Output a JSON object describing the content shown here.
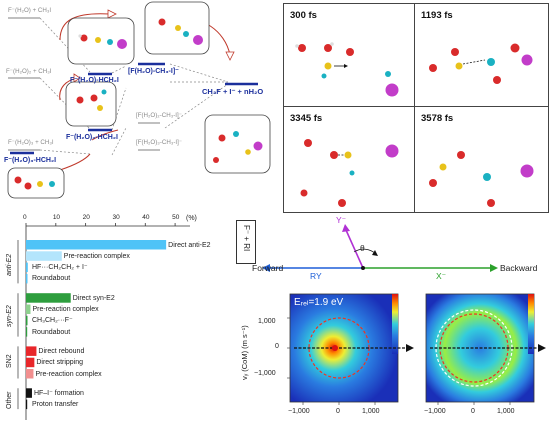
{
  "energy_diagram": {
    "reactants": [
      {
        "label": "F⁻(H₂O) + CH₃I"
      },
      {
        "label": "F⁻(H₂O)₂ + CH₃I"
      },
      {
        "label": "F⁻(H₂O)₃ + CH₃I"
      }
    ],
    "complexes": [
      {
        "label": "F⁻(H₂O)-HCH₂I"
      },
      {
        "label": "F⁻(H₂O)₂-HCH₂I"
      },
      {
        "label": "F⁻(H₂O)₃-HCH₂I"
      }
    ],
    "transition_states": [
      {
        "label": "[F(H₂O)-CH₃-I]⁻"
      },
      {
        "label": "[F(H₂O)₂-CH₃-I]⁻"
      },
      {
        "label": "[F(H₂O)₃-CH₃-I]⁻"
      }
    ],
    "products": "CH₃F + I⁻ + nH₂O"
  },
  "snapshots": [
    {
      "time": "300 fs"
    },
    {
      "time": "1193 fs"
    },
    {
      "time": "3345 fs"
    },
    {
      "time": "3578 fs"
    }
  ],
  "bar_chart": {
    "unit": "(%)",
    "ticks": [
      "0",
      "10",
      "20",
      "30",
      "40",
      "50"
    ],
    "groups": [
      {
        "name": "anti-E2",
        "bars": [
          {
            "label": "Direct anti-E2",
            "value": 47,
            "color": "#4fc3f7"
          },
          {
            "label": "Pre-reaction complex",
            "value": 12,
            "color": "#b3e5fc"
          },
          {
            "label": "HF···CH₂CH₂ + I⁻",
            "value": 0.6,
            "color": "#4fc3f7"
          },
          {
            "label": "Roundabout",
            "value": 0.5,
            "color": "#4fc3f7"
          }
        ]
      },
      {
        "name": "syn-E2",
        "bars": [
          {
            "label": "Direct syn-E2",
            "value": 15,
            "color": "#2e9e3e"
          },
          {
            "label": "Pre-reaction complex",
            "value": 1.5,
            "color": "#8fd18f"
          },
          {
            "label": "CH₃CH₂···F⁻",
            "value": 0.5,
            "color": "#2e9e3e"
          },
          {
            "label": "Roundabout",
            "value": 0.4,
            "color": "#2e9e3e"
          }
        ]
      },
      {
        "name": "SN2",
        "bars": [
          {
            "label": "Direct rebound",
            "value": 3.5,
            "color": "#e8262a"
          },
          {
            "label": "Direct stripping",
            "value": 2.8,
            "color": "#e8262a"
          },
          {
            "label": "Pre-reaction complex",
            "value": 2.5,
            "color": "#f28f8f"
          }
        ]
      },
      {
        "name": "Other",
        "bars": [
          {
            "label": "HF–I⁻ formation",
            "value": 2,
            "color": "#111111"
          },
          {
            "label": "Proton transfer",
            "value": 0.3,
            "color": "#111111"
          }
        ]
      }
    ]
  },
  "scatter_diagram": {
    "axis_box": "F⁻ + RI",
    "forward": "Forward",
    "backward": "Backward",
    "y_label": "Y⁻",
    "ry_label": "RY",
    "theta": "θ",
    "x_label": "X⁻"
  },
  "velocity_maps": {
    "energy_label": "Eᵣₑₗ=1.9 eV",
    "y_axis_label": "vᵧ (CoM) (m s⁻¹)",
    "y_ticks": [
      "1,000",
      "0",
      "−1,000"
    ],
    "x_ticks": [
      "−1,000",
      "0",
      "1,000"
    ]
  }
}
